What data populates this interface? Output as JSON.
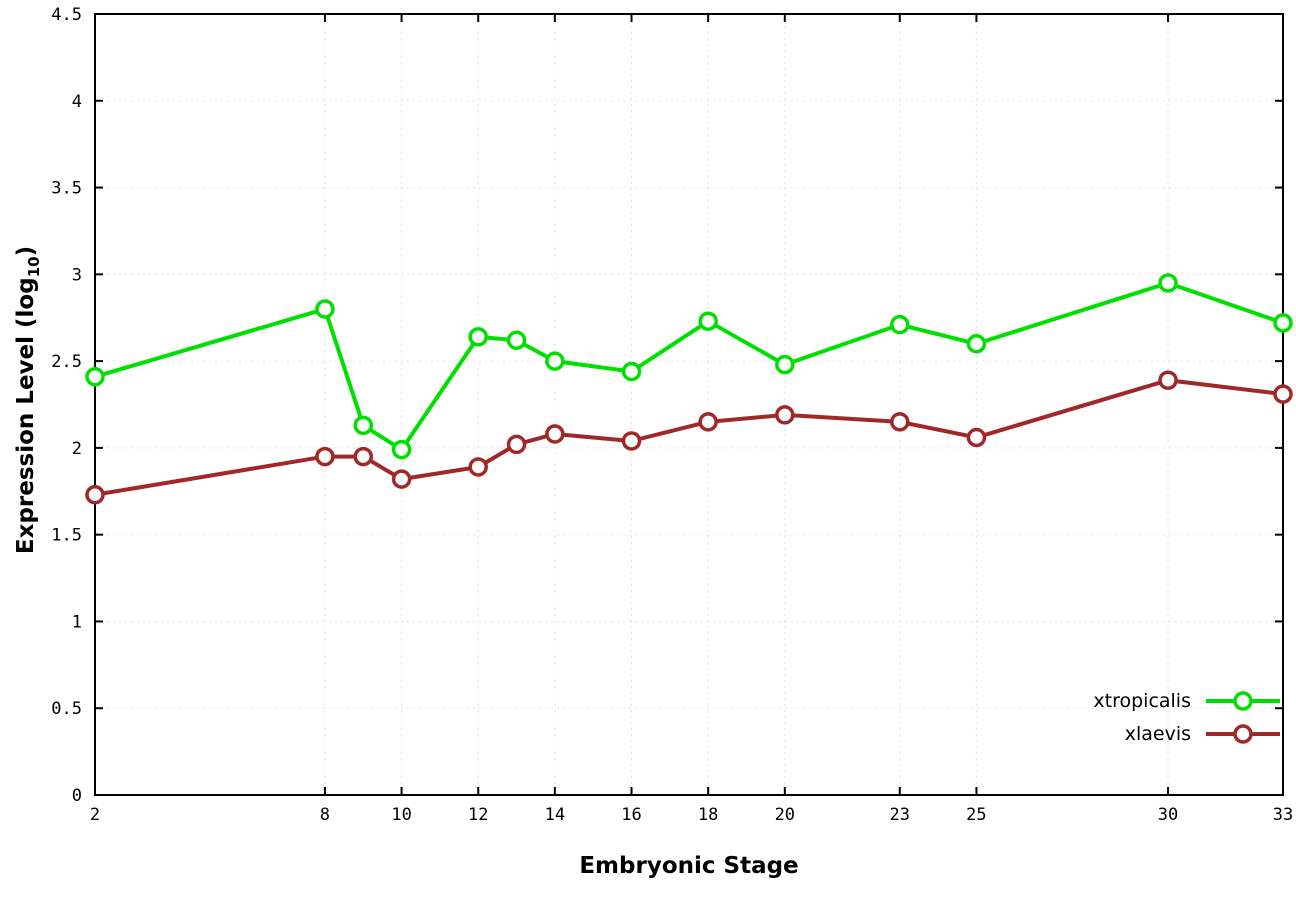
{
  "chart_data": {
    "type": "line",
    "title": "",
    "x": [
      2,
      8,
      9,
      10,
      12,
      13,
      14,
      16,
      18,
      20,
      23,
      25,
      30,
      33
    ],
    "series": [
      {
        "name": "xtropicalis",
        "color": "#00e000",
        "values": [
          2.41,
          2.8,
          2.13,
          1.99,
          2.64,
          2.62,
          2.5,
          2.44,
          2.73,
          2.48,
          2.71,
          2.6,
          2.95,
          2.72
        ]
      },
      {
        "name": "xlaevis",
        "color": "#a02828",
        "values": [
          1.73,
          1.95,
          1.95,
          1.82,
          1.89,
          2.02,
          2.08,
          2.04,
          2.15,
          2.19,
          2.15,
          2.06,
          2.39,
          2.31
        ]
      }
    ],
    "xlabel": "Embryonic Stage",
    "ylabel_prefix": "Expression Level (log",
    "ylabel_sub": "10",
    "ylabel_suffix": ")",
    "xlim": [
      2,
      33
    ],
    "ylim": [
      0,
      4.5
    ],
    "xticks": [
      2,
      8,
      10,
      12,
      14,
      16,
      18,
      20,
      23,
      25,
      30,
      33
    ],
    "yticks": [
      0,
      0.5,
      1,
      1.5,
      2,
      2.5,
      3,
      3.5,
      4,
      4.5
    ],
    "ytick_labels": [
      "0",
      "0.5",
      "1",
      "1.5",
      "2",
      "2.5",
      "3",
      "3.5",
      "4",
      "4.5"
    ],
    "grid": true,
    "legend_position": "bottom-right",
    "marker": "open-circle",
    "background": "#ffffff"
  }
}
